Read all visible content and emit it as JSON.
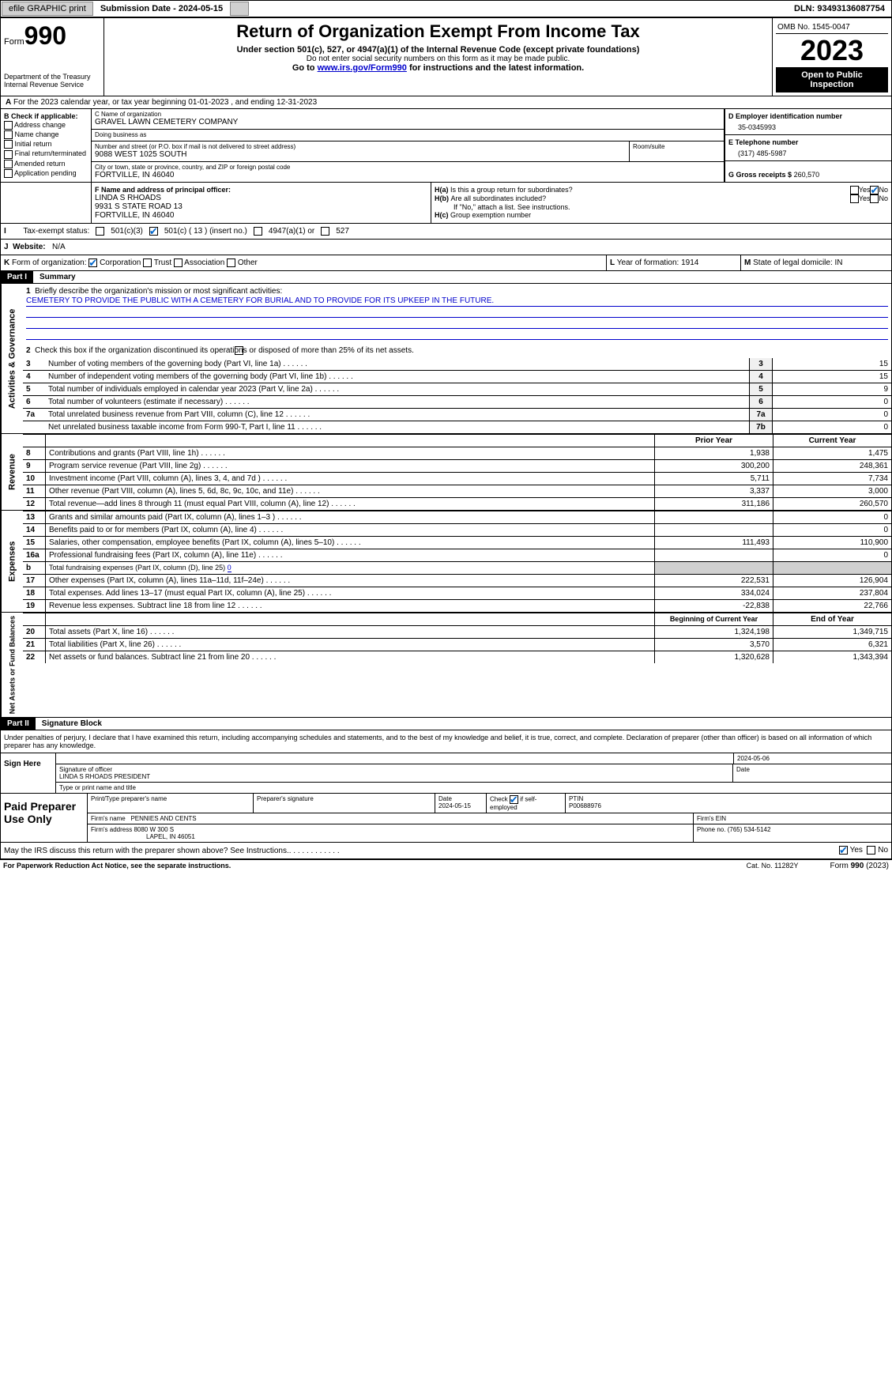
{
  "topbar": {
    "efile": "efile GRAPHIC print",
    "submission": "Submission Date - 2024-05-15",
    "dln": "DLN: 93493136087754"
  },
  "header": {
    "form_label": "Form",
    "form_no": "990",
    "dept": "Department of the Treasury\nInternal Revenue Service",
    "title": "Return of Organization Exempt From Income Tax",
    "subtitle": "Under section 501(c), 527, or 4947(a)(1) of the Internal Revenue Code (except private foundations)",
    "note1": "Do not enter social security numbers on this form as it may be made public.",
    "note2_pre": "Go to ",
    "note2_link": "www.irs.gov/Form990",
    "note2_post": " for instructions and the latest information.",
    "omb": "OMB No. 1545-0047",
    "year": "2023",
    "open": "Open to Public Inspection"
  },
  "A": {
    "text": "For the 2023 calendar year, or tax year beginning 01-01-2023   , and ending 12-31-2023"
  },
  "B": {
    "label": "Check if applicable:",
    "items": [
      "Address change",
      "Name change",
      "Initial return",
      "Final return/terminated",
      "Amended return",
      "Application pending"
    ]
  },
  "C": {
    "name_label": "C Name of organization",
    "name": "GRAVEL LAWN CEMETERY COMPANY",
    "dba_label": "Doing business as",
    "dba": "",
    "street_label": "Number and street (or P.O. box if mail is not delivered to street address)",
    "street": "9088 WEST 1025 SOUTH",
    "room_label": "Room/suite",
    "city_label": "City or town, state or province, country, and ZIP or foreign postal code",
    "city": "FORTVILLE, IN  46040"
  },
  "D": {
    "label": "D Employer identification number",
    "value": "35-0345993"
  },
  "E": {
    "label": "E Telephone number",
    "value": "(317) 485-5987"
  },
  "G": {
    "label": "G Gross receipts $",
    "value": "260,570"
  },
  "F": {
    "label": "F  Name and address of principal officer:",
    "name": "LINDA S RHOADS",
    "addr1": "9931 S STATE ROAD 13",
    "addr2": "FORTVILLE, IN  46040"
  },
  "H": {
    "a": "Is this a group return for subordinates?",
    "b": "Are all subordinates included?",
    "note": "If \"No,\" attach a list. See instructions.",
    "c": "Group exemption number"
  },
  "I": {
    "label": "Tax-exempt status:",
    "opts": [
      "501(c)(3)",
      "501(c) ( 13 ) (insert no.)",
      "4947(a)(1) or",
      "527"
    ]
  },
  "J": {
    "label": "Website:",
    "value": "N/A"
  },
  "K": {
    "label": "Form of organization:",
    "opts": [
      "Corporation",
      "Trust",
      "Association",
      "Other"
    ]
  },
  "L": {
    "label": "Year of formation:",
    "value": "1914"
  },
  "M": {
    "label": "State of legal domicile:",
    "value": "IN"
  },
  "part1": {
    "hdr": "Part I",
    "title": "Summary",
    "q1": "Briefly describe the organization's mission or most significant activities:",
    "mission": "CEMETERY TO PROVIDE THE PUBLIC WITH A CEMETERY FOR BURIAL AND TO PROVIDE FOR ITS UPKEEP IN THE FUTURE.",
    "q2": "Check this box     if the organization discontinued its operations or disposed of more than 25% of its net assets.",
    "gov": [
      {
        "n": "3",
        "t": "Number of voting members of the governing body (Part VI, line 1a)",
        "ln": "3",
        "v": "15"
      },
      {
        "n": "4",
        "t": "Number of independent voting members of the governing body (Part VI, line 1b)",
        "ln": "4",
        "v": "15"
      },
      {
        "n": "5",
        "t": "Total number of individuals employed in calendar year 2023 (Part V, line 2a)",
        "ln": "5",
        "v": "9"
      },
      {
        "n": "6",
        "t": "Total number of volunteers (estimate if necessary)",
        "ln": "6",
        "v": "0"
      },
      {
        "n": "7a",
        "t": "Total unrelated business revenue from Part VIII, column (C), line 12",
        "ln": "7a",
        "v": "0"
      },
      {
        "n": "",
        "t": "Net unrelated business taxable income from Form 990-T, Part I, line 11",
        "ln": "7b",
        "v": "0"
      }
    ],
    "col_prior": "Prior Year",
    "col_curr": "Current Year",
    "revenue": [
      {
        "n": "8",
        "t": "Contributions and grants (Part VIII, line 1h)",
        "p": "1,938",
        "c": "1,475"
      },
      {
        "n": "9",
        "t": "Program service revenue (Part VIII, line 2g)",
        "p": "300,200",
        "c": "248,361"
      },
      {
        "n": "10",
        "t": "Investment income (Part VIII, column (A), lines 3, 4, and 7d )",
        "p": "5,711",
        "c": "7,734"
      },
      {
        "n": "11",
        "t": "Other revenue (Part VIII, column (A), lines 5, 6d, 8c, 9c, 10c, and 11e)",
        "p": "3,337",
        "c": "3,000"
      },
      {
        "n": "12",
        "t": "Total revenue—add lines 8 through 11 (must equal Part VIII, column (A), line 12)",
        "p": "311,186",
        "c": "260,570"
      }
    ],
    "expenses": [
      {
        "n": "13",
        "t": "Grants and similar amounts paid (Part IX, column (A), lines 1–3 )",
        "p": "",
        "c": "0"
      },
      {
        "n": "14",
        "t": "Benefits paid to or for members (Part IX, column (A), line 4)",
        "p": "",
        "c": "0"
      },
      {
        "n": "15",
        "t": "Salaries, other compensation, employee benefits (Part IX, column (A), lines 5–10)",
        "p": "111,493",
        "c": "110,900"
      },
      {
        "n": "16a",
        "t": "Professional fundraising fees (Part IX, column (A), line 11e)",
        "p": "",
        "c": "0"
      },
      {
        "n": "b",
        "t": "Total fundraising expenses (Part IX, column (D), line 25)",
        "sub": "0",
        "shaded": true
      },
      {
        "n": "17",
        "t": "Other expenses (Part IX, column (A), lines 11a–11d, 11f–24e)",
        "p": "222,531",
        "c": "126,904"
      },
      {
        "n": "18",
        "t": "Total expenses. Add lines 13–17 (must equal Part IX, column (A), line 25)",
        "p": "334,024",
        "c": "237,804"
      },
      {
        "n": "19",
        "t": "Revenue less expenses. Subtract line 18 from line 12",
        "p": "-22,838",
        "c": "22,766"
      }
    ],
    "col_begin": "Beginning of Current Year",
    "col_end": "End of Year",
    "netassets": [
      {
        "n": "20",
        "t": "Total assets (Part X, line 16)",
        "p": "1,324,198",
        "c": "1,349,715"
      },
      {
        "n": "21",
        "t": "Total liabilities (Part X, line 26)",
        "p": "3,570",
        "c": "6,321"
      },
      {
        "n": "22",
        "t": "Net assets or fund balances. Subtract line 21 from line 20",
        "p": "1,320,628",
        "c": "1,343,394"
      }
    ],
    "vlabels": {
      "gov": "Activities & Governance",
      "rev": "Revenue",
      "exp": "Expenses",
      "net": "Net Assets or Fund Balances"
    }
  },
  "part2": {
    "hdr": "Part II",
    "title": "Signature Block",
    "decl": "Under penalties of perjury, I declare that I have examined this return, including accompanying schedules and statements, and to the best of my knowledge and belief, it is true, correct, and complete. Declaration of preparer (other than officer) is based on all information of which preparer has any knowledge.",
    "sign_here": "Sign Here",
    "sig_officer": "Signature of officer",
    "sig_date_label": "Date",
    "sig_date": "2024-05-06",
    "officer_name": "LINDA S RHOADS PRESIDENT",
    "type_name": "Type or print name and title",
    "paid": "Paid Preparer Use Only",
    "prep_name_label": "Print/Type preparer's name",
    "prep_sig_label": "Preparer's signature",
    "prep_date_label": "Date",
    "prep_date": "2024-05-15",
    "prep_check": "Check       if self-employed",
    "ptin_label": "PTIN",
    "ptin": "P00688976",
    "firm_name_label": "Firm's name",
    "firm_name": "PENNIES AND CENTS",
    "firm_ein_label": "Firm's EIN",
    "firm_addr_label": "Firm's address",
    "firm_addr": "8080 W 300 S",
    "firm_addr2": "LAPEL, IN  46051",
    "firm_phone_label": "Phone no.",
    "firm_phone": "(765) 534-5142",
    "may": "May the IRS discuss this return with the preparer shown above? See Instructions."
  },
  "footer": {
    "paperwork": "For Paperwork Reduction Act Notice, see the separate instructions.",
    "cat": "Cat. No. 11282Y",
    "form": "Form 990 (2023)"
  }
}
